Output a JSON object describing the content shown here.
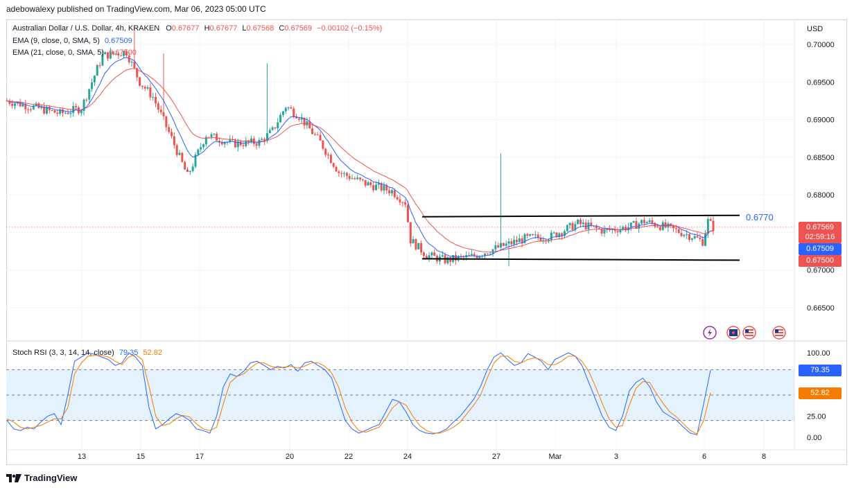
{
  "header": {
    "text": "adebowalexy published on TradingView.com, Mar 06, 2023 05:00 UTC"
  },
  "legend": {
    "symbol": "Australian Dollar / U.S. Dollar, 4h, KRAKEN",
    "o_label": "O",
    "o": "0.67677",
    "h_label": "H",
    "h": "0.67677",
    "l_label": "L",
    "l": "0.67568",
    "c_label": "C",
    "c": "0.67569",
    "change": "−0.00102 (−0.15%)",
    "ema9_label": "EMA (9, close, 0, SMA, 5)",
    "ema9_value": "0.67509",
    "ema21_label": "EMA (21, close, 0, SMA, 5)",
    "ema21_value": "0.67500"
  },
  "price_axis": {
    "currency": "USD",
    "tag_last": "0.67569",
    "tag_countdown": "02:59:16",
    "tag_ema9": "0.67509",
    "tag_ema21": "0.67500"
  },
  "annotation": {
    "resistance_label": "0.6770"
  },
  "stoch": {
    "label": "Stoch RSI (3, 3, 14, 14, close)",
    "k_value": "79.35",
    "d_value": "52.82",
    "tag_k": "79.35",
    "tag_d": "52.82"
  },
  "footer": {
    "brand": "TradingView"
  },
  "colors": {
    "up": "#26a69a",
    "down": "#ef5350",
    "ema9": "#2962ff",
    "ema21": "#ef5350",
    "stoch_k": "#2962ff",
    "stoch_d": "#f57c00",
    "band": "#e3f2fd"
  },
  "chart_data": [
    {
      "type": "candlestick",
      "title": "Australian Dollar / U.S. Dollar, 4h, KRAKEN",
      "ylabel": "USD",
      "ylim": [
        0.663,
        0.7025
      ],
      "y_ticks": [
        "0.70000",
        "0.69500",
        "0.69000",
        "0.68500",
        "0.68000",
        "0.67500",
        "0.67000",
        "0.66500"
      ],
      "x_ticks": [
        "13",
        "15",
        "17",
        "20",
        "22",
        "24",
        "27",
        "Mar",
        "3",
        "6",
        "8"
      ],
      "series": [
        {
          "name": "EMA (9, close, 0, SMA, 5)",
          "last": 0.67509
        },
        {
          "name": "EMA (21, close, 0, SMA, 5)",
          "last": 0.675
        }
      ],
      "ohlc_last": {
        "open": 0.67677,
        "high": 0.67677,
        "low": 0.67568,
        "close": 0.67569
      },
      "resistance": 0.677,
      "support": 0.6715,
      "grid": true
    },
    {
      "type": "line",
      "title": "Stoch RSI (3, 3, 14, 14, close)",
      "ylim": [
        0,
        100
      ],
      "y_ticks": [
        "100.00",
        "25.00",
        "0.00"
      ],
      "band": [
        20,
        80
      ],
      "series": [
        {
          "name": "K",
          "values": [
            20,
            10,
            8,
            12,
            10,
            18,
            25,
            28,
            15,
            50,
            90,
            95,
            100,
            98,
            95,
            92,
            85,
            88,
            100,
            95,
            85,
            35,
            10,
            15,
            22,
            28,
            25,
            20,
            10,
            8,
            5,
            25,
            60,
            75,
            72,
            78,
            88,
            90,
            85,
            80,
            84,
            82,
            86,
            78,
            88,
            90,
            85,
            80,
            70,
            45,
            20,
            10,
            5,
            8,
            12,
            15,
            30,
            45,
            42,
            30,
            15,
            8,
            5,
            4,
            6,
            10,
            18,
            25,
            35,
            45,
            60,
            80,
            95,
            100,
            92,
            85,
            88,
            99,
            95,
            90,
            80,
            92,
            96,
            100,
            96,
            85,
            65,
            45,
            25,
            12,
            8,
            25,
            55,
            65,
            70,
            60,
            42,
            30,
            25,
            20,
            12,
            5,
            3,
            40,
            79.35
          ]
        },
        {
          "name": "D",
          "values": [
            22,
            18,
            12,
            10,
            12,
            14,
            18,
            22,
            22,
            35,
            75,
            88,
            96,
            97,
            97,
            95,
            90,
            86,
            95,
            98,
            92,
            60,
            25,
            14,
            16,
            22,
            26,
            24,
            16,
            10,
            8,
            12,
            40,
            65,
            72,
            75,
            82,
            88,
            88,
            84,
            82,
            83,
            84,
            82,
            84,
            88,
            88,
            84,
            76,
            60,
            35,
            18,
            8,
            6,
            9,
            12,
            22,
            35,
            42,
            38,
            25,
            14,
            8,
            5,
            5,
            8,
            12,
            18,
            28,
            38,
            50,
            70,
            88,
            96,
            96,
            90,
            88,
            92,
            94,
            92,
            86,
            86,
            90,
            96,
            96,
            90,
            78,
            60,
            40,
            22,
            12,
            14,
            38,
            58,
            66,
            65,
            52,
            40,
            30,
            24,
            16,
            8,
            4,
            20,
            52.82
          ]
        }
      ],
      "last": {
        "K": 79.35,
        "D": 52.82
      },
      "grid": true
    }
  ]
}
